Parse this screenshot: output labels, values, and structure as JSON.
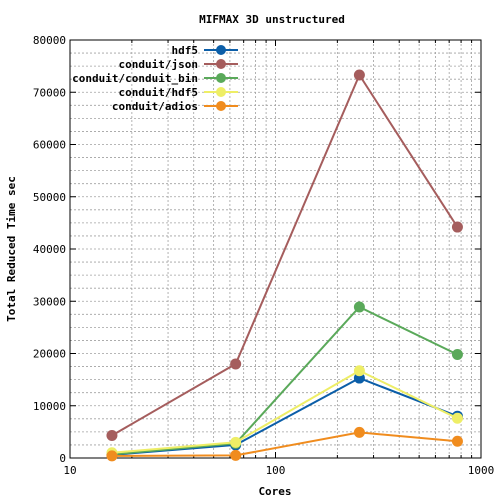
{
  "chart_data": {
    "type": "line",
    "title": "MIFMAX 3D unstructured",
    "xlabel": "Cores",
    "ylabel": "Total Reduced Time sec",
    "xscale": "log",
    "xlim": [
      10,
      1000
    ],
    "ylim": [
      0,
      80000
    ],
    "x_major_ticks": [
      10,
      100,
      1000
    ],
    "x_tick_labels": [
      "10",
      "100",
      "1000"
    ],
    "y_ticks": [
      0,
      10000,
      20000,
      30000,
      40000,
      50000,
      60000,
      70000,
      80000
    ],
    "y_tick_labels": [
      "0",
      "10000",
      "20000",
      "30000",
      "40000",
      "50000",
      "60000",
      "70000",
      "80000"
    ],
    "grid": true,
    "legend_position": "top-left",
    "x": [
      16,
      64,
      256,
      768
    ],
    "series": [
      {
        "name": "hdf5",
        "color": "#0b5ea8",
        "values": [
          600,
          2500,
          15300,
          8000
        ]
      },
      {
        "name": "conduit/json",
        "color": "#a55d5d",
        "values": [
          4300,
          18000,
          73300,
          44200
        ]
      },
      {
        "name": "conduit/conduit_bin",
        "color": "#5aa95a",
        "values": [
          700,
          2800,
          28900,
          19800
        ]
      },
      {
        "name": "conduit/hdf5",
        "color": "#eeee66",
        "values": [
          1000,
          3000,
          16700,
          7600
        ]
      },
      {
        "name": "conduit/adios",
        "color": "#f08c1e",
        "values": [
          400,
          500,
          4900,
          3200
        ]
      }
    ]
  }
}
